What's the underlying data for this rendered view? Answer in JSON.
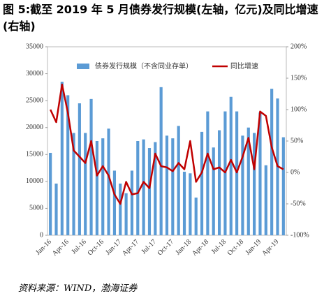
{
  "chart_data": {
    "type": "bar_line",
    "title": "图 5:截至 2019 年 5 月债券发行规模(左轴，亿元)及同比增速(右轴)",
    "source": "资料来源：WIND，渤海证券",
    "categories": [
      "Jan-16",
      null,
      null,
      "Apr-16",
      null,
      null,
      "Jul-16",
      null,
      null,
      "Oct-16",
      null,
      null,
      "Jan-17",
      null,
      null,
      "Apr-17",
      null,
      null,
      "Jul-17",
      null,
      null,
      "Oct-17",
      null,
      null,
      "Jan-18",
      null,
      null,
      "Apr-18",
      null,
      null,
      "Jul-18",
      null,
      null,
      "Oct-18",
      null,
      null,
      "Jan-19",
      null,
      null,
      "Apr-19",
      null
    ],
    "series": [
      {
        "name": "债券发行规模（不含同业存单）",
        "color": "#5b9bd5",
        "type": "bar",
        "values": [
          15300,
          9600,
          28500,
          26000,
          19000,
          24500,
          19000,
          25300,
          17500,
          18000,
          19800,
          12000,
          9600,
          7800,
          12000,
          17500,
          17800,
          16200,
          17300,
          27500,
          18500,
          18000,
          20300,
          11800,
          11500,
          7000,
          19200,
          23000,
          16300,
          19500,
          23000,
          25700,
          23000,
          18500,
          20000,
          19000,
          22800,
          13000,
          27200,
          25400,
          18200
        ]
      },
      {
        "name": "同比增速",
        "color": "#c00000",
        "type": "line",
        "axis": "y2",
        "values": [
          100,
          80,
          140,
          95,
          35,
          25,
          15,
          50,
          -5,
          10,
          -5,
          -35,
          -50,
          -15,
          -35,
          -33,
          -15,
          -25,
          30,
          10,
          8,
          2,
          15,
          5,
          50,
          -15,
          0,
          30,
          5,
          8,
          0,
          20,
          0,
          25,
          55,
          5,
          97,
          90,
          40,
          10,
          5
        ]
      }
    ],
    "ylim": [
      0,
      35000
    ],
    "yticks": [
      0,
      5000,
      10000,
      15000,
      20000,
      25000,
      30000,
      35000
    ],
    "y2lim": [
      -100,
      200
    ],
    "y2ticks": [
      {
        "value": -100,
        "label": "-100%"
      },
      {
        "value": -50,
        "label": "-50%"
      },
      {
        "value": 0,
        "label": "0%"
      },
      {
        "value": 50,
        "label": "50%"
      },
      {
        "value": 100,
        "label": "100%"
      },
      {
        "value": 150,
        "label": "150%"
      },
      {
        "value": 200,
        "label": "200%"
      }
    ],
    "legend": "top"
  }
}
